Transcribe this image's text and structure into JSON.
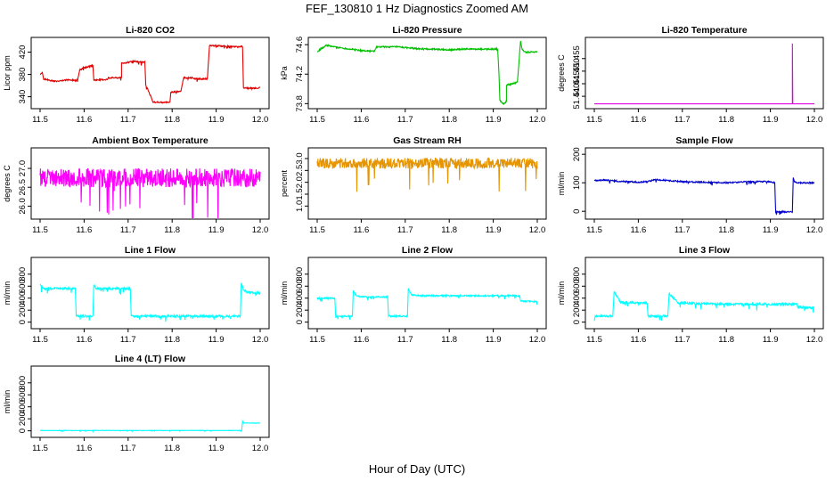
{
  "page_title": "FEF_130810  1 Hz Diagnostics Zoomed AM",
  "x_axis_label": "Hour of Day (UTC)",
  "chart_data": [
    {
      "type": "line",
      "title": "Li-820 CO2",
      "ylabel": "Licor ppm",
      "xlim": [
        11.5,
        12.0
      ],
      "ylim": [
        325,
        440
      ],
      "xticks": [
        11.5,
        11.6,
        11.7,
        11.8,
        11.9,
        12.0
      ],
      "xticklabels": [
        "11.5",
        "11.6",
        "11.7",
        "11.8",
        "11.9",
        "12.0"
      ],
      "yticks": [
        340,
        380,
        420
      ],
      "yticklabels": [
        "340",
        "380",
        "420"
      ],
      "color": "#e00000",
      "noise": 1.2,
      "x": [
        11.5,
        11.505,
        11.508,
        11.53,
        11.545,
        11.56,
        11.585,
        11.59,
        11.6,
        11.62,
        11.622,
        11.653,
        11.655,
        11.66,
        11.685,
        11.685,
        11.71,
        11.715,
        11.738,
        11.74,
        11.757,
        11.762,
        11.765,
        11.775,
        11.795,
        11.797,
        11.82,
        11.826,
        11.846,
        11.85,
        11.88,
        11.885,
        11.93,
        11.96,
        11.962,
        11.98,
        12.0
      ],
      "y": [
        380,
        384,
        372,
        368,
        368,
        370,
        370,
        388,
        392,
        396,
        370,
        371,
        374,
        374,
        374,
        400,
        403,
        403,
        402,
        362,
        330,
        330,
        330,
        330,
        330,
        348,
        350,
        374,
        374,
        372,
        372,
        432,
        430,
        430,
        356,
        355,
        356
      ]
    },
    {
      "type": "line",
      "title": "Li-820 Pressure",
      "ylabel": "kPa",
      "xlim": [
        11.5,
        12.0
      ],
      "ylim": [
        73.78,
        74.65
      ],
      "xticks": [
        11.5,
        11.6,
        11.7,
        11.8,
        11.9,
        12.0
      ],
      "xticklabels": [
        "11.5",
        "11.6",
        "11.7",
        "11.8",
        "11.9",
        "12.0"
      ],
      "yticks": [
        73.8,
        74.2,
        74.6
      ],
      "yticklabels": [
        "73.8",
        "74.2",
        "74.6"
      ],
      "color": "#00c000",
      "noise": 0.01,
      "x": [
        11.5,
        11.51,
        11.52,
        11.53,
        11.55,
        11.6,
        11.63,
        11.635,
        11.68,
        11.7,
        11.74,
        11.76,
        11.8,
        11.84,
        11.87,
        11.9,
        11.91,
        11.913,
        11.915,
        11.92,
        11.925,
        11.93,
        11.93,
        11.95,
        11.955,
        11.96,
        11.962,
        11.965,
        11.97,
        11.98,
        12.0
      ],
      "y": [
        74.5,
        74.55,
        74.59,
        74.58,
        74.56,
        74.52,
        74.51,
        74.57,
        74.57,
        74.56,
        74.54,
        74.54,
        74.53,
        74.54,
        74.54,
        74.54,
        74.54,
        74.2,
        73.85,
        73.81,
        73.8,
        73.83,
        74.05,
        74.08,
        74.1,
        74.5,
        74.65,
        74.55,
        74.5,
        74.5,
        74.5
      ]
    },
    {
      "type": "line",
      "title": "Li-820 Temperature",
      "ylabel": "degrees C",
      "xlim": [
        11.5,
        12.0
      ],
      "ylim": [
        51.4365,
        51.462
      ],
      "xticks": [
        11.5,
        11.6,
        11.7,
        11.8,
        11.9,
        12.0
      ],
      "xticklabels": [
        "11.5",
        "11.6",
        "11.7",
        "11.8",
        "11.9",
        "12.0"
      ],
      "yticks": [
        51.44,
        51.445,
        51.45,
        51.455
      ],
      "yticklabels": [
        "51.440",
        "51.445",
        "51.450",
        "51.455"
      ],
      "color": "#e000e0",
      "noise": 0,
      "x": [
        11.5,
        11.949,
        11.95,
        11.95,
        11.951,
        12.0
      ],
      "y": [
        51.437,
        51.437,
        51.437,
        51.461,
        51.437,
        51.437
      ]
    },
    {
      "type": "line",
      "title": "Ambient Box Temperature",
      "ylabel": "degrees C",
      "xlim": [
        11.5,
        12.0
      ],
      "ylim": [
        25.75,
        27.45
      ],
      "xticks": [
        11.5,
        11.6,
        11.7,
        11.8,
        11.9,
        12.0
      ],
      "xticklabels": [
        "11.5",
        "11.6",
        "11.7",
        "11.8",
        "11.9",
        "12.0"
      ],
      "yticks": [
        26.0,
        26.5,
        27.0
      ],
      "yticklabels": [
        "26.0",
        "26.5",
        "27.0"
      ],
      "color": "#ff00ff",
      "noise": 0.25,
      "x": [
        11.5,
        12.0
      ],
      "y": [
        26.75,
        26.75
      ]
    },
    {
      "type": "line",
      "title": "Gas Stream RH",
      "ylabel": "percent",
      "xlim": [
        11.5,
        12.0
      ],
      "ylim": [
        0.6,
        3.3
      ],
      "xticks": [
        11.5,
        11.6,
        11.7,
        11.8,
        11.9,
        12.0
      ],
      "xticklabels": [
        "11.5",
        "11.6",
        "11.7",
        "11.8",
        "11.9",
        "12.0"
      ],
      "yticks": [
        1.0,
        1.5,
        2.0,
        2.5,
        3.0
      ],
      "yticklabels": [
        "1.0",
        "1.5",
        "2.0",
        "2.5",
        "3.0"
      ],
      "color": "#e69500",
      "noise": 0.22,
      "x": [
        11.5,
        12.0
      ],
      "y": [
        2.8,
        2.8
      ]
    },
    {
      "type": "line",
      "title": "Sample Flow",
      "ylabel": "ml/min",
      "xlim": [
        11.5,
        12.0
      ],
      "ylim": [
        -15,
        210
      ],
      "xticks": [
        11.5,
        11.6,
        11.7,
        11.8,
        11.9,
        12.0
      ],
      "xticklabels": [
        "11.5",
        "11.6",
        "11.7",
        "11.8",
        "11.9",
        "12.0"
      ],
      "yticks": [
        0,
        100,
        200
      ],
      "yticklabels": [
        "0",
        "100",
        "200"
      ],
      "color": "#0000cc",
      "noise": 2.5,
      "x": [
        11.5,
        11.52,
        11.55,
        11.6,
        11.62,
        11.64,
        11.7,
        11.8,
        11.86,
        11.9,
        11.91,
        11.912,
        11.95,
        11.952,
        11.955,
        11.97,
        12.0
      ],
      "y": [
        108,
        110,
        106,
        102,
        104,
        111,
        104,
        100,
        104,
        104,
        100,
        -2,
        -2,
        118,
        102,
        100,
        100
      ]
    },
    {
      "type": "line",
      "title": "Line 1 Flow",
      "ylabel": "ml/min",
      "xlim": [
        11.5,
        12.0
      ],
      "ylim": [
        -50,
        1020
      ],
      "xticks": [
        11.5,
        11.6,
        11.7,
        11.8,
        11.9,
        12.0
      ],
      "xticklabels": [
        "11.5",
        "11.6",
        "11.7",
        "11.8",
        "11.9",
        "12.0"
      ],
      "yticks": [
        0,
        200,
        400,
        600,
        800
      ],
      "yticklabels": [
        "0",
        "200",
        "400",
        "600",
        "800"
      ],
      "color": "#00ffff",
      "noise": 18,
      "x": [
        11.5,
        11.505,
        11.51,
        11.58,
        11.582,
        11.62,
        11.622,
        11.627,
        11.63,
        11.705,
        11.707,
        11.955,
        11.957,
        11.962,
        11.97,
        12.0
      ],
      "y": [
        620,
        580,
        560,
        560,
        100,
        100,
        620,
        570,
        560,
        560,
        100,
        100,
        640,
        540,
        500,
        490
      ]
    },
    {
      "type": "line",
      "title": "Line 2 Flow",
      "ylabel": "ml/min",
      "xlim": [
        11.5,
        12.0
      ],
      "ylim": [
        -50,
        1020
      ],
      "xticks": [
        11.5,
        11.6,
        11.7,
        11.8,
        11.9,
        12.0
      ],
      "xticklabels": [
        "11.5",
        "11.6",
        "11.7",
        "11.8",
        "11.9",
        "12.0"
      ],
      "yticks": [
        0,
        200,
        400,
        600,
        800
      ],
      "yticklabels": [
        "0",
        "200",
        "400",
        "600",
        "800"
      ],
      "color": "#00ffff",
      "noise": 12,
      "x": [
        11.5,
        11.54,
        11.542,
        11.58,
        11.582,
        11.59,
        11.62,
        11.66,
        11.662,
        11.705,
        11.707,
        11.715,
        11.73,
        11.8,
        11.96,
        11.962,
        12.0
      ],
      "y": [
        400,
        400,
        100,
        100,
        530,
        430,
        420,
        420,
        100,
        100,
        560,
        450,
        440,
        440,
        440,
        350,
        340
      ]
    },
    {
      "type": "line",
      "title": "Line 3 Flow",
      "ylabel": "ml/min",
      "xlim": [
        11.5,
        12.0
      ],
      "ylim": [
        -50,
        1020
      ],
      "xticks": [
        11.5,
        11.6,
        11.7,
        11.8,
        11.9,
        12.0
      ],
      "xticklabels": [
        "11.5",
        "11.6",
        "11.7",
        "11.8",
        "11.9",
        "12.0"
      ],
      "yticks": [
        0,
        200,
        400,
        600,
        800
      ],
      "yticklabels": [
        "0",
        "200",
        "400",
        "600",
        "800"
      ],
      "color": "#00ffff",
      "noise": 18,
      "x": [
        11.5,
        11.502,
        11.54,
        11.542,
        11.545,
        11.56,
        11.62,
        11.622,
        11.665,
        11.667,
        11.67,
        11.69,
        11.8,
        11.96,
        11.962,
        12.0
      ],
      "y": [
        20,
        100,
        100,
        100,
        500,
        330,
        320,
        100,
        100,
        100,
        480,
        320,
        300,
        300,
        250,
        240
      ]
    },
    {
      "type": "line",
      "title": "Line 4 (LT) Flow",
      "ylabel": "ml/min",
      "xlim": [
        11.5,
        12.0
      ],
      "ylim": [
        -50,
        1020
      ],
      "xticks": [
        11.5,
        11.6,
        11.7,
        11.8,
        11.9,
        12.0
      ],
      "xticklabels": [
        "11.5",
        "11.6",
        "11.7",
        "11.8",
        "11.9",
        "12.0"
      ],
      "yticks": [
        0,
        200,
        400,
        600,
        800
      ],
      "yticklabels": [
        "0",
        "200",
        "400",
        "600",
        "800"
      ],
      "color": "#00ffff",
      "noise": 3,
      "x": [
        11.5,
        11.958,
        11.96,
        11.962,
        11.97,
        12.0
      ],
      "y": [
        5,
        5,
        160,
        130,
        130,
        130
      ]
    }
  ]
}
